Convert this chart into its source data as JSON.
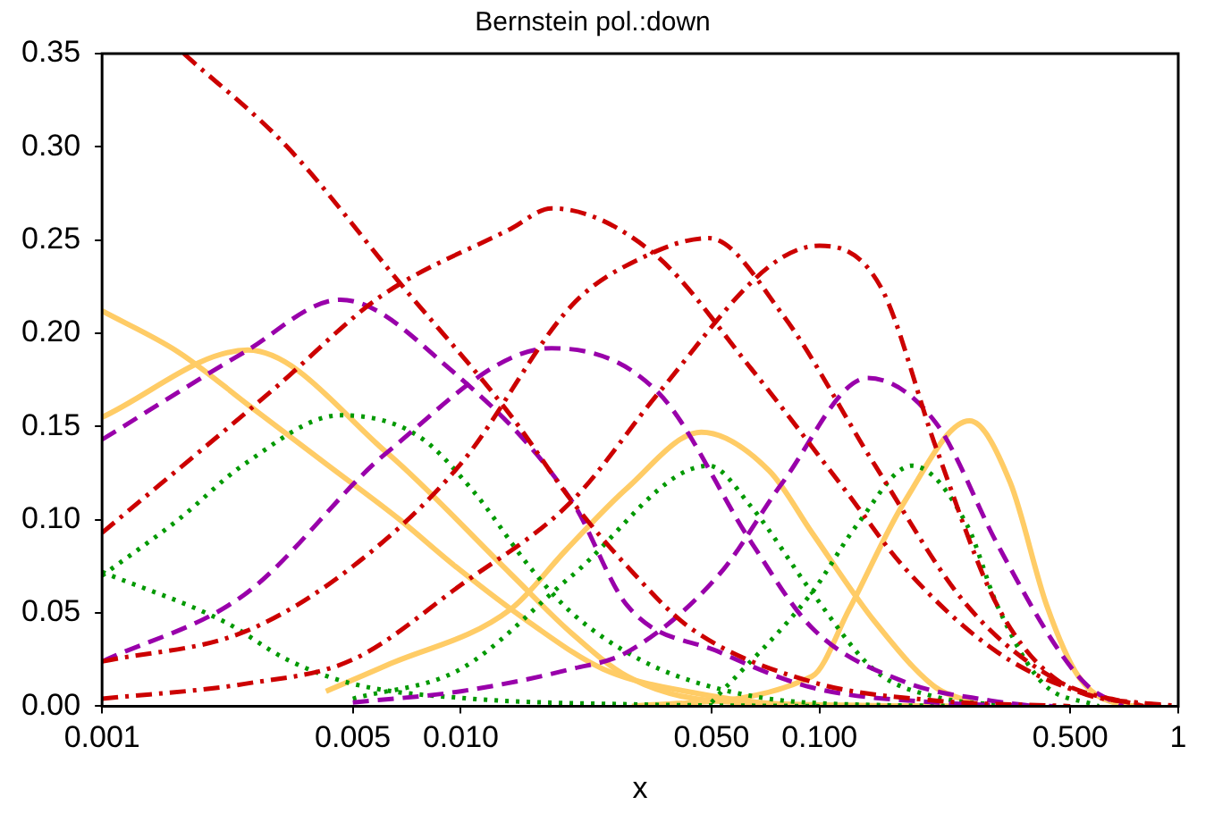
{
  "chart_data": {
    "type": "line",
    "title": "Bernstein pol.:down",
    "xlabel": "x",
    "log": "x",
    "grid": false,
    "legend": false,
    "marker": "none",
    "xlim": [
      0.001,
      1
    ],
    "ylim": [
      0,
      0.35
    ],
    "xticks": [
      0.001,
      0.005,
      {
        "value": 0.01,
        "label": "0.010"
      },
      {
        "value": 0.05,
        "label": "0.050"
      },
      {
        "value": 0.1,
        "label": "0.100"
      },
      {
        "value": 0.5,
        "label": "0.500"
      },
      1
    ],
    "yticks": [
      {
        "value": 0,
        "label": "0.00"
      },
      {
        "value": 0.05,
        "label": "0.05"
      },
      {
        "value": 0.1,
        "label": "0.10"
      },
      {
        "value": 0.15,
        "label": "0.15"
      },
      {
        "value": 0.2,
        "label": "0.20"
      },
      {
        "value": 0.25,
        "label": "0.25"
      },
      {
        "value": 0.3,
        "label": "0.30"
      },
      {
        "value": 0.35,
        "label": "0.35"
      }
    ],
    "series": [
      {
        "color": "#cc0000",
        "line_style": "dashdot",
        "x": [
          0.00169,
          0.00328,
          0.00676,
          0.01377,
          0.0204,
          0.0291,
          0.0436,
          0.0953,
          0.211,
          0.5
        ],
        "values": [
          0.35,
          0.3,
          0.227,
          0.156,
          0.11,
          0.075,
          0.042,
          0.013,
          0.003,
          0
        ]
      },
      {
        "color": "#cc0000",
        "line_style": "dashdot",
        "x": [
          0.001,
          0.00305,
          0.006,
          0.01377,
          0.0179,
          0.0344,
          0.0645,
          0.1167,
          0.173,
          0.313,
          0.566,
          1
        ],
        "values": [
          0.093,
          0.171,
          0.22,
          0.256,
          0.267,
          0.243,
          0.181,
          0.117,
          0.074,
          0.029,
          0.006,
          0
        ]
      },
      {
        "color": "#cc0000",
        "line_style": "dashdot",
        "x": [
          0.001,
          0.0025,
          0.005,
          0.01,
          0.0204,
          0.0316,
          0.0491,
          0.0789,
          0.143,
          0.258,
          0.468,
          0.8
        ],
        "values": [
          0.024,
          0.04,
          0.075,
          0.13,
          0.215,
          0.24,
          0.251,
          0.21,
          0.129,
          0.054,
          0.013,
          0
        ]
      },
      {
        "color": "#cc0000",
        "line_style": "dashdot",
        "x": [
          0.001,
          0.0025,
          0.005,
          0.01,
          0.0204,
          0.0356,
          0.0726,
          0.1,
          0.148,
          0.211,
          0.313,
          0.468,
          0.9
        ],
        "values": [
          0.004,
          0.012,
          0.025,
          0.065,
          0.11,
          0.168,
          0.236,
          0.247,
          0.225,
          0.139,
          0.054,
          0.013,
          0
        ]
      },
      {
        "color": "#9900aa",
        "line_style": "dashed",
        "x": [
          0.001,
          0.0025,
          0.00462,
          0.0093,
          0.0204,
          0.0291,
          0.0527,
          0.0953,
          0.211,
          0.45
        ],
        "values": [
          0.143,
          0.19,
          0.218,
          0.181,
          0.11,
          0.054,
          0.029,
          0.01,
          0.002,
          0
        ]
      },
      {
        "color": "#9900aa",
        "line_style": "dashed",
        "x": [
          0.001,
          0.0025,
          0.00622,
          0.0179,
          0.0356,
          0.0645,
          0.0953,
          0.173,
          0.3,
          0.4
        ],
        "values": [
          0.024,
          0.06,
          0.136,
          0.192,
          0.168,
          0.088,
          0.042,
          0.013,
          0.003,
          0
        ]
      },
      {
        "color": "#9900aa",
        "line_style": "dashed",
        "x": [
          0.005,
          0.01,
          0.0204,
          0.0291,
          0.0527,
          0.0789,
          0.136,
          0.211,
          0.313,
          0.468,
          0.566,
          0.7
        ],
        "values": [
          0.002,
          0.008,
          0.02,
          0.029,
          0.071,
          0.12,
          0.176,
          0.152,
          0.087,
          0.029,
          0.01,
          0
        ]
      },
      {
        "color": "#009900",
        "line_style": "dotted",
        "x": [
          0.001,
          0.00221,
          0.00328,
          0.005,
          0.01074,
          0.03,
          0.1
        ],
        "values": [
          0.072,
          0.045,
          0.025,
          0.012,
          0.004,
          0.001,
          0
        ]
      },
      {
        "color": "#009900",
        "line_style": "dotted",
        "x": [
          0.001,
          0.00163,
          0.0025,
          0.00462,
          0.0076,
          0.01087,
          0.01552,
          0.0204,
          0.0316,
          0.0508,
          0.092,
          0.3
        ],
        "values": [
          0.07,
          0.1,
          0.13,
          0.156,
          0.145,
          0.115,
          0.075,
          0.05,
          0.025,
          0.01,
          0.002,
          0
        ]
      },
      {
        "color": "#009900",
        "line_style": "dotted",
        "x": [
          0.005,
          0.01,
          0.0204,
          0.0491,
          0.0645,
          0.0953,
          0.143,
          0.211,
          0.4
        ],
        "values": [
          0.004,
          0.02,
          0.07,
          0.129,
          0.107,
          0.061,
          0.019,
          0.005,
          0
        ]
      },
      {
        "color": "#009900",
        "line_style": "dotted",
        "x": [
          0.05,
          0.0953,
          0.127,
          0.181,
          0.258,
          0.313,
          0.416,
          0.6
        ],
        "values": [
          0.002,
          0.061,
          0.097,
          0.129,
          0.097,
          0.054,
          0.013,
          0
        ]
      },
      {
        "color": "#ffcc66",
        "line_style": "solid",
        "x": [
          0.001,
          0.00163,
          0.00262,
          0.00421,
          0.00676,
          0.00966,
          0.01552,
          0.0249,
          0.0452,
          0.0817,
          0.3
        ],
        "values": [
          0.212,
          0.19,
          0.16,
          0.13,
          0.1,
          0.075,
          0.045,
          0.02,
          0.007,
          0.001,
          0
        ]
      },
      {
        "color": "#ffcc66",
        "line_style": "solid",
        "x": [
          0.001,
          0.00255,
          0.00622,
          0.01377,
          0.0204,
          0.0291,
          0.05,
          0.2
        ],
        "values": [
          0.155,
          0.191,
          0.136,
          0.071,
          0.039,
          0.016,
          0.003,
          0
        ]
      },
      {
        "color": "#ffcc66",
        "line_style": "solid",
        "x": [
          0.00421,
          0.00622,
          0.01377,
          0.0197,
          0.0291,
          0.0468,
          0.0726,
          0.0953,
          0.143,
          0.211,
          0.268
        ],
        "values": [
          0.008,
          0.022,
          0.052,
          0.084,
          0.117,
          0.147,
          0.126,
          0.093,
          0.045,
          0.01,
          0.002
        ]
      },
      {
        "color": "#ffcc66",
        "line_style": "solid",
        "x": [
          0.03,
          0.0953,
          0.121,
          0.173,
          0.262,
          0.34,
          0.43,
          0.527,
          0.692,
          0.8
        ],
        "values": [
          0,
          0.016,
          0.052,
          0.11,
          0.153,
          0.12,
          0.054,
          0.016,
          0.001,
          0
        ]
      }
    ]
  }
}
